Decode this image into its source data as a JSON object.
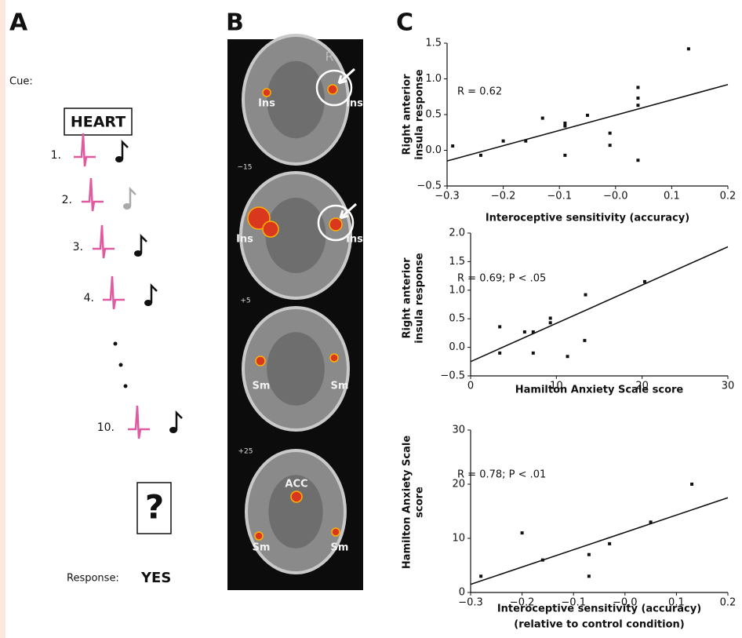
{
  "panel_labels": [
    "A",
    "B",
    "C"
  ],
  "panel_a": {
    "cue_label": "Cue:",
    "cue": "HEART",
    "steps": [
      "1.",
      "2.",
      "3.",
      "4.",
      "10."
    ],
    "prompt": "?",
    "response_label": "Response:",
    "response": "YES"
  },
  "panel_b": {
    "labels": [
      "R",
      "Ins",
      "Ins",
      "−15",
      "Ins",
      "Ins",
      "+5",
      "Sm",
      "Sm",
      "+25",
      "ACC",
      "Sm",
      "Sm"
    ]
  },
  "chart_data": [
    {
      "type": "scatter",
      "color": "#111111",
      "x": [
        -0.29,
        -0.24,
        -0.2,
        -0.16,
        -0.13,
        -0.09,
        -0.09,
        -0.09,
        -0.05,
        -0.01,
        -0.01,
        0.04,
        0.04,
        0.04,
        0.04,
        0.13
      ],
      "y": [
        0.06,
        -0.07,
        0.13,
        0.13,
        0.45,
        0.38,
        0.34,
        -0.07,
        0.49,
        0.24,
        0.07,
        0.88,
        0.73,
        0.63,
        -0.14,
        1.42
      ],
      "fit_line": {
        "x": [
          -0.3,
          0.2
        ],
        "y": [
          -0.15,
          0.92
        ]
      },
      "xlim": [
        -0.3,
        0.2
      ],
      "ylim": [
        -0.5,
        1.5
      ],
      "xticks": [
        {
          "value": -0.3,
          "label": "−0.3"
        },
        {
          "value": -0.2,
          "label": "−0.2"
        },
        {
          "value": -0.1,
          "label": "−0.1"
        },
        {
          "value": 0,
          "label": "−0.0"
        },
        {
          "value": 0.1,
          "label": "0.1"
        },
        {
          "value": 0.2,
          "label": "0.2"
        }
      ],
      "yticks": [
        {
          "value": -0.5,
          "label": "−0.5"
        },
        {
          "value": 0,
          "label": "0.0"
        },
        {
          "value": 0.5,
          "label": "0.5"
        },
        {
          "value": 1,
          "label": "1.0"
        },
        {
          "value": 1.5,
          "label": "1.5"
        }
      ],
      "xlabel": [
        "Interoceptive sensitivity (accuracy)"
      ],
      "ylabel": [
        "Right anterior",
        "insula response"
      ],
      "annotation": "R = 0.62"
    },
    {
      "type": "scatter",
      "color": "#111111",
      "x": [
        3.4,
        3.4,
        6.3,
        7.3,
        7.3,
        9.3,
        9.3,
        11.3,
        13.3,
        13.4,
        20.3
      ],
      "y": [
        0.36,
        -0.1,
        0.27,
        0.27,
        -0.1,
        0.51,
        0.43,
        -0.16,
        0.12,
        0.92,
        1.15
      ],
      "fit_line": {
        "x": [
          0,
          30
        ],
        "y": [
          -0.25,
          1.76
        ]
      },
      "xlim": [
        0,
        30
      ],
      "ylim": [
        -0.5,
        2.0
      ],
      "xticks": [
        0,
        10,
        20,
        30
      ],
      "yticks": [
        {
          "value": -0.5,
          "label": "−0.5"
        },
        {
          "value": 0,
          "label": "0.0"
        },
        {
          "value": 0.5,
          "label": "0.5"
        },
        {
          "value": 1,
          "label": "1.0"
        },
        {
          "value": 1.5,
          "label": "1.5"
        },
        {
          "value": 2,
          "label": "2.0"
        }
      ],
      "xlabel": [
        "Hamilton Anxiety Scale score"
      ],
      "ylabel": [
        "Right anterior",
        "insula response"
      ],
      "annotation": "R = 0.69; P < .05"
    },
    {
      "type": "scatter",
      "color": "#111111",
      "x": [
        -0.28,
        -0.2,
        -0.16,
        -0.07,
        -0.07,
        -0.03,
        0.05,
        0.13
      ],
      "y": [
        3,
        11,
        6,
        7,
        3,
        9,
        13,
        20
      ],
      "fit_line": {
        "x": [
          -0.3,
          0.2
        ],
        "y": [
          1.5,
          17.5
        ]
      },
      "xlim": [
        -0.3,
        0.2
      ],
      "ylim": [
        0,
        30
      ],
      "xticks": [
        {
          "value": -0.3,
          "label": "−0.3"
        },
        {
          "value": -0.2,
          "label": "−0.2"
        },
        {
          "value": -0.1,
          "label": "−0.1"
        },
        {
          "value": 0,
          "label": "−0.0"
        },
        {
          "value": 0.1,
          "label": "0.1"
        },
        {
          "value": 0.2,
          "label": "0.2"
        }
      ],
      "yticks": [
        0,
        10,
        20,
        30
      ],
      "xlabel": [
        "Interoceptive sensitivity (accuracy)",
        "(relative to control condition)"
      ],
      "ylabel": [
        "Hamilton Anxiety Scale",
        "score"
      ],
      "annotation": "R = 0.78; P < .01"
    }
  ]
}
